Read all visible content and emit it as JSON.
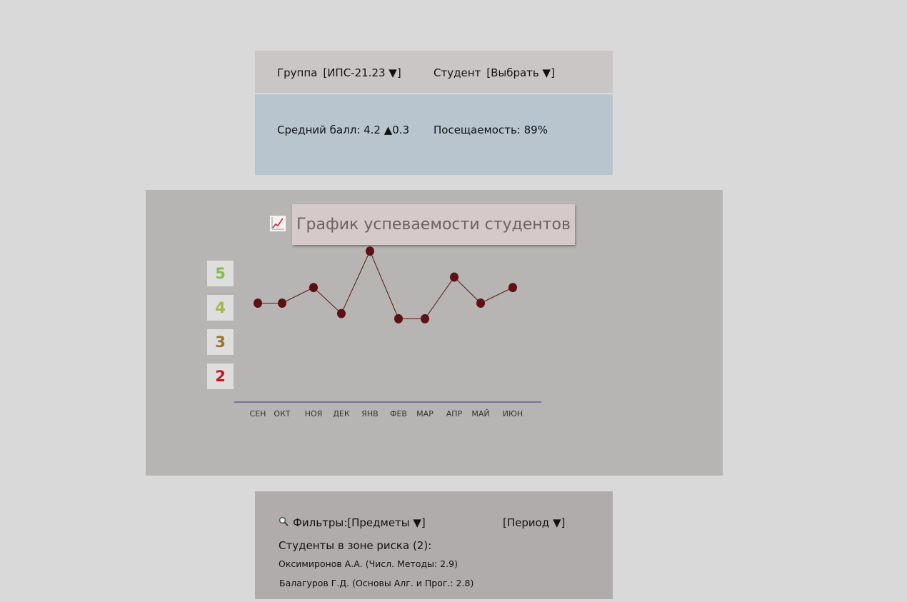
{
  "header": {
    "group_label": "Группа",
    "group_value": "[ИПС-21.23 ▼]",
    "student_label": "Студент",
    "student_value": "[Выбрать ▼]"
  },
  "stats": {
    "average": "Средний балл: 4.2 ▲0.3",
    "attendance": "Посещаемость: 89%"
  },
  "chart": {
    "icon": "chart-increasing-icon",
    "title": "График успеваемости студентов",
    "line_color": "#5e1115",
    "grade_tiles": [
      {
        "grade": "5",
        "color": "#86bb4f"
      },
      {
        "grade": "4",
        "color": "#a6b64e"
      },
      {
        "grade": "3",
        "color": "#9b7231"
      },
      {
        "grade": "2",
        "color": "#c8161d"
      }
    ]
  },
  "chart_data": {
    "type": "line",
    "categories": [
      "СЕН",
      "ОКТ",
      "НОЯ",
      "ДЕК",
      "ЯНВ",
      "ФЕВ",
      "МАР",
      "АПР",
      "МАЙ",
      "ИЮН"
    ],
    "values": [
      3.6,
      3.6,
      3.9,
      3.4,
      4.6,
      3.3,
      3.3,
      4.1,
      3.6,
      3.9
    ],
    "ylim": [
      1.7,
      5.5
    ],
    "xlabel": "",
    "ylabel": ""
  },
  "filters": {
    "search_icon": "search-icon",
    "filters_label": "Фильтры:",
    "subjects_value": "[Предметы ▼]",
    "period_value": "[Период ▼]",
    "risk_title": "Студенты в зоне риска (2):",
    "risk_students": [
      "Оксимиронов А.А.   (Числ. Методы: 2.9)",
      "Балагуров Г.Д.  (Основы Алг. и Прог.: 2.8)"
    ]
  }
}
